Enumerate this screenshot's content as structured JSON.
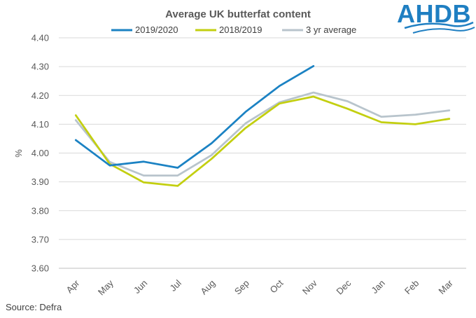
{
  "logo": {
    "text": "AHDB",
    "color": "#1f7fc2"
  },
  "source": "Source:  Defra",
  "chart_data": {
    "type": "line",
    "title": "Average UK butterfat content",
    "xlabel": "",
    "ylabel": "%",
    "categories": [
      "Apr",
      "May",
      "Jun",
      "Jul",
      "Aug",
      "Sep",
      "Oct",
      "Nov",
      "Dec",
      "Jan",
      "Feb",
      "Mar"
    ],
    "ylim": [
      3.6,
      4.4
    ],
    "yticks": [
      "3.60",
      "3.70",
      "3.80",
      "3.90",
      "4.00",
      "4.10",
      "4.20",
      "4.30",
      "4.40"
    ],
    "grid": true,
    "legend": "top",
    "series": [
      {
        "name": "2019/2020",
        "color": "#1b82c3",
        "values": [
          4.045,
          3.957,
          3.97,
          3.949,
          4.034,
          4.143,
          4.233,
          4.302,
          null,
          null,
          null,
          null
        ]
      },
      {
        "name": "2018/2019",
        "color": "#c3cf10",
        "values": [
          4.131,
          3.962,
          3.898,
          3.886,
          3.98,
          4.087,
          4.172,
          4.196,
          4.154,
          4.107,
          4.1,
          4.119
        ]
      },
      {
        "name": "3 yr average",
        "color": "#b8c4cc",
        "values": [
          4.114,
          3.969,
          3.922,
          3.922,
          3.993,
          4.103,
          4.176,
          4.21,
          4.18,
          4.126,
          4.133,
          4.148
        ]
      }
    ]
  }
}
